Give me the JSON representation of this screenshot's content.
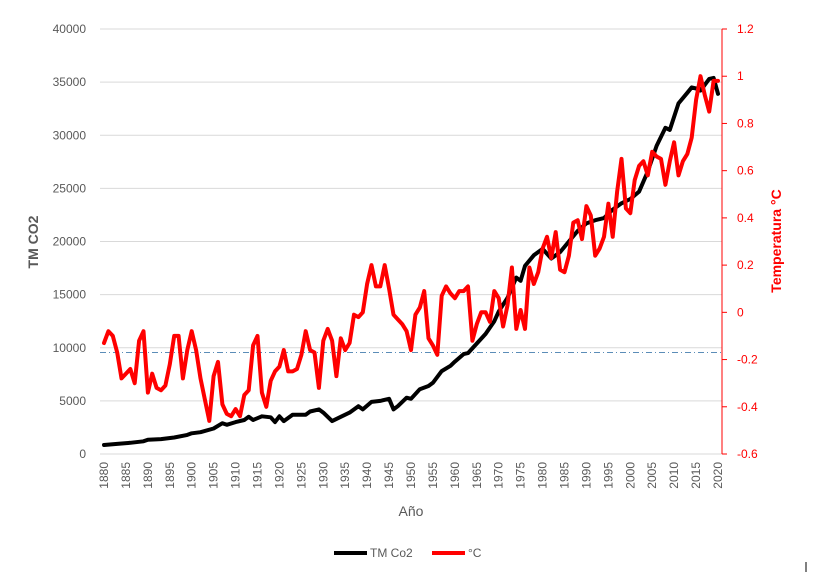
{
  "chart_data": {
    "type": "line",
    "xlabel": "Año",
    "ylabel_left": "TM CO2",
    "ylabel_right": "Temperatura °C",
    "xlim": [
      1880,
      2020
    ],
    "ylim_left": [
      0,
      40000
    ],
    "ylim_right": [
      -0.6,
      1.2
    ],
    "yticks_left": [
      "0",
      "5000",
      "10000",
      "15000",
      "20000",
      "25000",
      "30000",
      "35000",
      "40000"
    ],
    "yticks_right": [
      "-0.6",
      "-0.4",
      "-0.2",
      "0",
      "0.2",
      "0.4",
      "0.6",
      "0.8",
      "1",
      "1.2"
    ],
    "xticks": [
      "1880",
      "1885",
      "1890",
      "1895",
      "1900",
      "1905",
      "1910",
      "1915",
      "1920",
      "1925",
      "1930",
      "1935",
      "1940",
      "1945",
      "1950",
      "1955",
      "1960",
      "1965",
      "1970",
      "1975",
      "1980",
      "1985",
      "1990",
      "1995",
      "2000",
      "2005",
      "2010",
      "2015",
      "2020"
    ],
    "reference_line": {
      "axis": "right",
      "value": -0.17
    },
    "legend": {
      "position": "bottom"
    },
    "series": [
      {
        "name": "TM Co2",
        "axis": "left",
        "color": "#000000",
        "points": [
          [
            1880,
            850
          ],
          [
            1883,
            950
          ],
          [
            1886,
            1050
          ],
          [
            1889,
            1200
          ],
          [
            1890,
            1350
          ],
          [
            1893,
            1400
          ],
          [
            1896,
            1550
          ],
          [
            1899,
            1800
          ],
          [
            1900,
            1950
          ],
          [
            1902,
            2050
          ],
          [
            1905,
            2400
          ],
          [
            1907,
            2900
          ],
          [
            1908,
            2750
          ],
          [
            1910,
            3000
          ],
          [
            1912,
            3200
          ],
          [
            1913,
            3500
          ],
          [
            1914,
            3200
          ],
          [
            1916,
            3550
          ],
          [
            1918,
            3450
          ],
          [
            1919,
            3000
          ],
          [
            1920,
            3550
          ],
          [
            1921,
            3100
          ],
          [
            1923,
            3700
          ],
          [
            1926,
            3700
          ],
          [
            1927,
            4000
          ],
          [
            1929,
            4200
          ],
          [
            1930,
            3900
          ],
          [
            1932,
            3100
          ],
          [
            1934,
            3500
          ],
          [
            1936,
            3900
          ],
          [
            1938,
            4500
          ],
          [
            1939,
            4200
          ],
          [
            1941,
            4900
          ],
          [
            1943,
            5000
          ],
          [
            1945,
            5200
          ],
          [
            1946,
            4200
          ],
          [
            1947,
            4500
          ],
          [
            1949,
            5300
          ],
          [
            1950,
            5200
          ],
          [
            1952,
            6100
          ],
          [
            1954,
            6400
          ],
          [
            1955,
            6700
          ],
          [
            1957,
            7800
          ],
          [
            1959,
            8300
          ],
          [
            1960,
            8700
          ],
          [
            1962,
            9400
          ],
          [
            1963,
            9500
          ],
          [
            1965,
            10400
          ],
          [
            1967,
            11300
          ],
          [
            1969,
            12500
          ],
          [
            1970,
            13400
          ],
          [
            1972,
            14700
          ],
          [
            1974,
            16600
          ],
          [
            1975,
            16300
          ],
          [
            1976,
            17700
          ],
          [
            1978,
            18700
          ],
          [
            1980,
            19300
          ],
          [
            1982,
            18400
          ],
          [
            1984,
            19000
          ],
          [
            1986,
            20000
          ],
          [
            1988,
            21000
          ],
          [
            1990,
            21700
          ],
          [
            1992,
            22000
          ],
          [
            1994,
            22200
          ],
          [
            1996,
            23000
          ],
          [
            1998,
            23600
          ],
          [
            2000,
            24000
          ],
          [
            2002,
            24700
          ],
          [
            2004,
            26600
          ],
          [
            2006,
            29000
          ],
          [
            2008,
            30700
          ],
          [
            2009,
            30500
          ],
          [
            2011,
            33000
          ],
          [
            2013,
            34000
          ],
          [
            2014,
            34500
          ],
          [
            2015,
            34400
          ],
          [
            2016,
            34200
          ],
          [
            2018,
            35300
          ],
          [
            2019,
            35400
          ],
          [
            2020,
            33900
          ]
        ]
      },
      {
        "name": "°C",
        "axis": "right",
        "color": "#ff0000",
        "points": [
          [
            1880,
            -0.13
          ],
          [
            1881,
            -0.08
          ],
          [
            1882,
            -0.1
          ],
          [
            1883,
            -0.17
          ],
          [
            1884,
            -0.28
          ],
          [
            1885,
            -0.26
          ],
          [
            1886,
            -0.24
          ],
          [
            1887,
            -0.3
          ],
          [
            1888,
            -0.12
          ],
          [
            1889,
            -0.08
          ],
          [
            1890,
            -0.34
          ],
          [
            1891,
            -0.26
          ],
          [
            1892,
            -0.32
          ],
          [
            1893,
            -0.33
          ],
          [
            1894,
            -0.31
          ],
          [
            1895,
            -0.22
          ],
          [
            1896,
            -0.1
          ],
          [
            1897,
            -0.1
          ],
          [
            1898,
            -0.28
          ],
          [
            1899,
            -0.16
          ],
          [
            1900,
            -0.08
          ],
          [
            1901,
            -0.16
          ],
          [
            1902,
            -0.28
          ],
          [
            1903,
            -0.37
          ],
          [
            1904,
            -0.46
          ],
          [
            1905,
            -0.27
          ],
          [
            1906,
            -0.21
          ],
          [
            1907,
            -0.39
          ],
          [
            1908,
            -0.43
          ],
          [
            1909,
            -0.44
          ],
          [
            1910,
            -0.41
          ],
          [
            1911,
            -0.44
          ],
          [
            1912,
            -0.35
          ],
          [
            1913,
            -0.33
          ],
          [
            1914,
            -0.14
          ],
          [
            1915,
            -0.1
          ],
          [
            1916,
            -0.34
          ],
          [
            1917,
            -0.4
          ],
          [
            1918,
            -0.29
          ],
          [
            1919,
            -0.25
          ],
          [
            1920,
            -0.23
          ],
          [
            1921,
            -0.16
          ],
          [
            1922,
            -0.25
          ],
          [
            1923,
            -0.25
          ],
          [
            1924,
            -0.24
          ],
          [
            1925,
            -0.18
          ],
          [
            1926,
            -0.08
          ],
          [
            1927,
            -0.16
          ],
          [
            1928,
            -0.17
          ],
          [
            1929,
            -0.32
          ],
          [
            1930,
            -0.12
          ],
          [
            1931,
            -0.07
          ],
          [
            1932,
            -0.12
          ],
          [
            1933,
            -0.27
          ],
          [
            1934,
            -0.11
          ],
          [
            1935,
            -0.16
          ],
          [
            1936,
            -0.13
          ],
          [
            1937,
            -0.01
          ],
          [
            1938,
            -0.02
          ],
          [
            1939,
            0
          ],
          [
            1940,
            0.12
          ],
          [
            1941,
            0.2
          ],
          [
            1942,
            0.11
          ],
          [
            1943,
            0.11
          ],
          [
            1944,
            0.2
          ],
          [
            1945,
            0.1
          ],
          [
            1946,
            -0.01
          ],
          [
            1947,
            -0.03
          ],
          [
            1948,
            -0.05
          ],
          [
            1949,
            -0.08
          ],
          [
            1950,
            -0.16
          ],
          [
            1951,
            -0.01
          ],
          [
            1952,
            0.02
          ],
          [
            1953,
            0.09
          ],
          [
            1954,
            -0.11
          ],
          [
            1955,
            -0.14
          ],
          [
            1956,
            -0.18
          ],
          [
            1957,
            0.07
          ],
          [
            1958,
            0.11
          ],
          [
            1959,
            0.08
          ],
          [
            1960,
            0.06
          ],
          [
            1961,
            0.09
          ],
          [
            1962,
            0.09
          ],
          [
            1963,
            0.11
          ],
          [
            1964,
            -0.12
          ],
          [
            1965,
            -0.05
          ],
          [
            1966,
            0
          ],
          [
            1967,
            0
          ],
          [
            1968,
            -0.04
          ],
          [
            1969,
            0.09
          ],
          [
            1970,
            0.06
          ],
          [
            1971,
            -0.06
          ],
          [
            1972,
            0.03
          ],
          [
            1973,
            0.19
          ],
          [
            1974,
            -0.07
          ],
          [
            1975,
            0.01
          ],
          [
            1976,
            -0.07
          ],
          [
            1977,
            0.19
          ],
          [
            1978,
            0.12
          ],
          [
            1979,
            0.17
          ],
          [
            1980,
            0.27
          ],
          [
            1981,
            0.32
          ],
          [
            1982,
            0.23
          ],
          [
            1983,
            0.34
          ],
          [
            1984,
            0.18
          ],
          [
            1985,
            0.17
          ],
          [
            1986,
            0.24
          ],
          [
            1987,
            0.38
          ],
          [
            1988,
            0.39
          ],
          [
            1989,
            0.31
          ],
          [
            1990,
            0.45
          ],
          [
            1991,
            0.41
          ],
          [
            1992,
            0.24
          ],
          [
            1993,
            0.27
          ],
          [
            1994,
            0.32
          ],
          [
            1995,
            0.46
          ],
          [
            1996,
            0.32
          ],
          [
            1997,
            0.51
          ],
          [
            1998,
            0.65
          ],
          [
            1999,
            0.44
          ],
          [
            2000,
            0.42
          ],
          [
            2001,
            0.56
          ],
          [
            2002,
            0.62
          ],
          [
            2003,
            0.64
          ],
          [
            2004,
            0.58
          ],
          [
            2005,
            0.68
          ],
          [
            2006,
            0.66
          ],
          [
            2007,
            0.65
          ],
          [
            2008,
            0.54
          ],
          [
            2009,
            0.64
          ],
          [
            2010,
            0.72
          ],
          [
            2011,
            0.58
          ],
          [
            2012,
            0.64
          ],
          [
            2013,
            0.67
          ],
          [
            2014,
            0.74
          ],
          [
            2015,
            0.9
          ],
          [
            2016,
            1.0
          ],
          [
            2017,
            0.92
          ],
          [
            2018,
            0.85
          ],
          [
            2019,
            0.98
          ],
          [
            2020,
            0.98
          ]
        ]
      }
    ]
  }
}
